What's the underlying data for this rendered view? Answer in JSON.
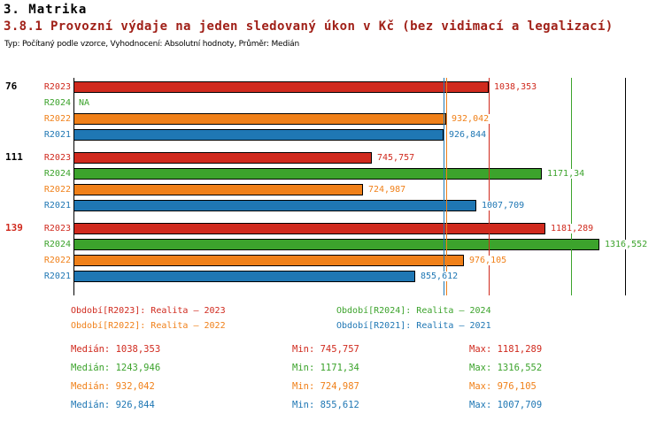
{
  "header": {
    "section": "3. Matrika",
    "title": "3.8.1 Provozní výdaje na jeden sledovaný úkon v Kč (bez vidimací a legalizací)",
    "subtitle": "Typ: Počítaný podle vzorce, Vyhodnocení: Absolutní hodnoty, Průměr: Medián"
  },
  "colors": {
    "title": "#a02018",
    "text": "#000000",
    "axis": "#000000",
    "series": {
      "R2023": "#d02a1e",
      "R2024": "#3ca32c",
      "R2022": "#f08019",
      "R2021": "#1f77b4"
    }
  },
  "chart_data": {
    "type": "bar",
    "orientation": "horizontal",
    "xlim": [
      0,
      1380
    ],
    "unit": "Kč",
    "series_order": [
      "R2023",
      "R2024",
      "R2022",
      "R2021"
    ],
    "groups": [
      {
        "label": "76",
        "highlight": false,
        "bars": [
          {
            "series": "R2023",
            "value": 1038.353,
            "display": "1038,353"
          },
          {
            "series": "R2024",
            "value": null,
            "display": "NA"
          },
          {
            "series": "R2022",
            "value": 932.042,
            "display": "932,042"
          },
          {
            "series": "R2021",
            "value": 926.844,
            "display": "926,844"
          }
        ]
      },
      {
        "label": "111",
        "highlight": false,
        "bars": [
          {
            "series": "R2023",
            "value": 745.757,
            "display": "745,757"
          },
          {
            "series": "R2024",
            "value": 1171.34,
            "display": "1171,34"
          },
          {
            "series": "R2022",
            "value": 724.987,
            "display": "724,987"
          },
          {
            "series": "R2021",
            "value": 1007.709,
            "display": "1007,709"
          }
        ]
      },
      {
        "label": "139",
        "highlight": true,
        "bars": [
          {
            "series": "R2023",
            "value": 1181.289,
            "display": "1181,289"
          },
          {
            "series": "R2024",
            "value": 1316.552,
            "display": "1316,552"
          },
          {
            "series": "R2022",
            "value": 976.105,
            "display": "976,105"
          },
          {
            "series": "R2021",
            "value": 855.612,
            "display": "855,612"
          }
        ]
      }
    ],
    "markers": [
      {
        "series": "R2021",
        "value": 926.844
      },
      {
        "series": "R2022",
        "value": 932.042
      },
      {
        "series": "R2023",
        "value": 1038.353
      },
      {
        "series": "R2024",
        "value": 1243.946
      }
    ]
  },
  "legend": [
    {
      "series": "R2023",
      "label": "Období[R2023]: Realita – 2023"
    },
    {
      "series": "R2024",
      "label": "Období[R2024]: Realita – 2024"
    },
    {
      "series": "R2022",
      "label": "Období[R2022]: Realita – 2022"
    },
    {
      "series": "R2021",
      "label": "Období[R2021]: Realita – 2021"
    }
  ],
  "stats": [
    {
      "series": "R2023",
      "median": "Medián: 1038,353",
      "min": "Min: 745,757",
      "max": "Max: 1181,289"
    },
    {
      "series": "R2024",
      "median": "Medián: 1243,946",
      "min": "Min: 1171,34",
      "max": "Max: 1316,552"
    },
    {
      "series": "R2022",
      "median": "Medián: 932,042",
      "min": "Min: 724,987",
      "max": "Max: 976,105"
    },
    {
      "series": "R2021",
      "median": "Medián: 926,844",
      "min": "Min: 855,612",
      "max": "Max: 1007,709"
    }
  ]
}
